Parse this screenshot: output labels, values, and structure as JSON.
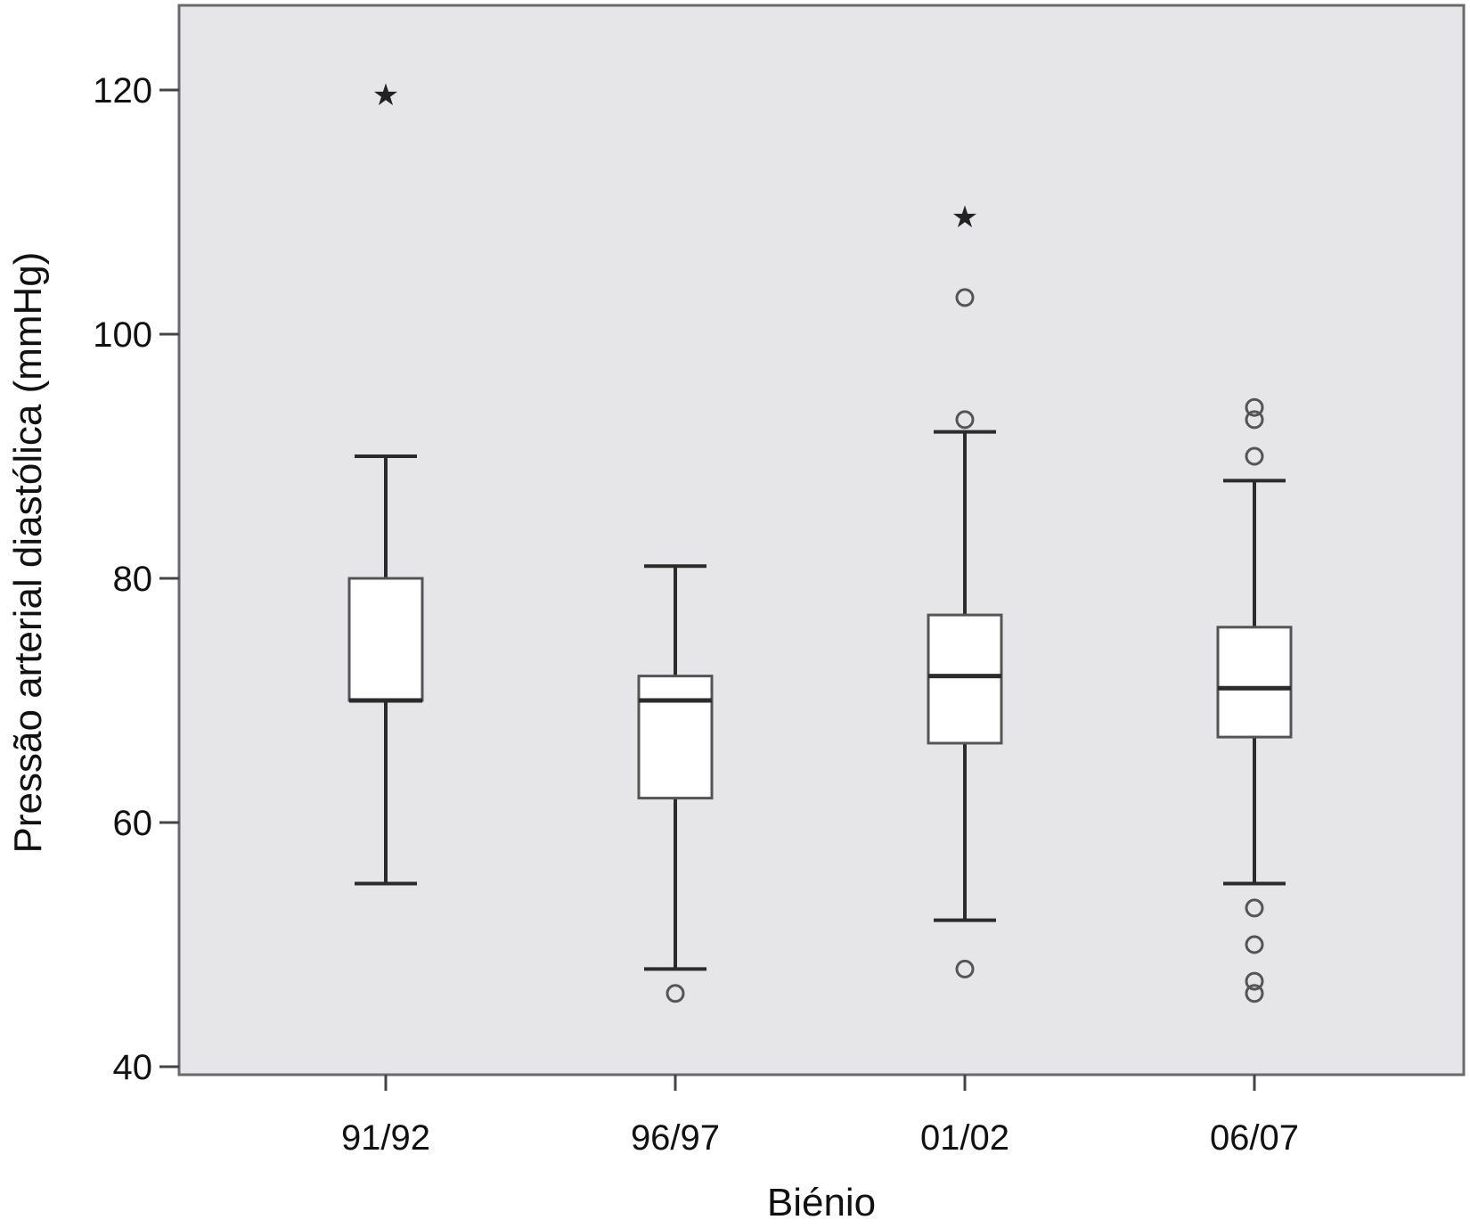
{
  "chart_data": {
    "type": "boxplot",
    "xlabel": "Biénio",
    "ylabel": "Pressão arterial diastólica (mmHg)",
    "ylim": [
      38,
      126
    ],
    "yticks": [
      40,
      60,
      80,
      100,
      120
    ],
    "categories": [
      "91/92",
      "96/97",
      "01/02",
      "06/07"
    ],
    "boxes": [
      {
        "category": "91/92",
        "whisker_low": 55,
        "q1": 70,
        "median": 70,
        "q3": 80,
        "whisker_high": 90,
        "outliers": [],
        "extremes": [
          120
        ]
      },
      {
        "category": "96/97",
        "whisker_low": 48,
        "q1": 62,
        "median": 70,
        "q3": 72,
        "whisker_high": 81,
        "outliers": [
          46
        ],
        "extremes": []
      },
      {
        "category": "01/02",
        "whisker_low": 52,
        "q1": 66.5,
        "median": 72,
        "q3": 77,
        "whisker_high": 92,
        "outliers": [
          48,
          93,
          103
        ],
        "extremes": [
          110
        ]
      },
      {
        "category": "06/07",
        "whisker_low": 55,
        "q1": 67,
        "median": 71,
        "q3": 76,
        "whisker_high": 88,
        "outliers": [
          46,
          47,
          50,
          53,
          90,
          93,
          94
        ],
        "extremes": []
      }
    ],
    "grid": false,
    "colors": {
      "plot_background": "#e6e6e8",
      "box_fill": "#ffffff",
      "stroke": "#2b2b2b",
      "outlier": "#555555"
    }
  }
}
